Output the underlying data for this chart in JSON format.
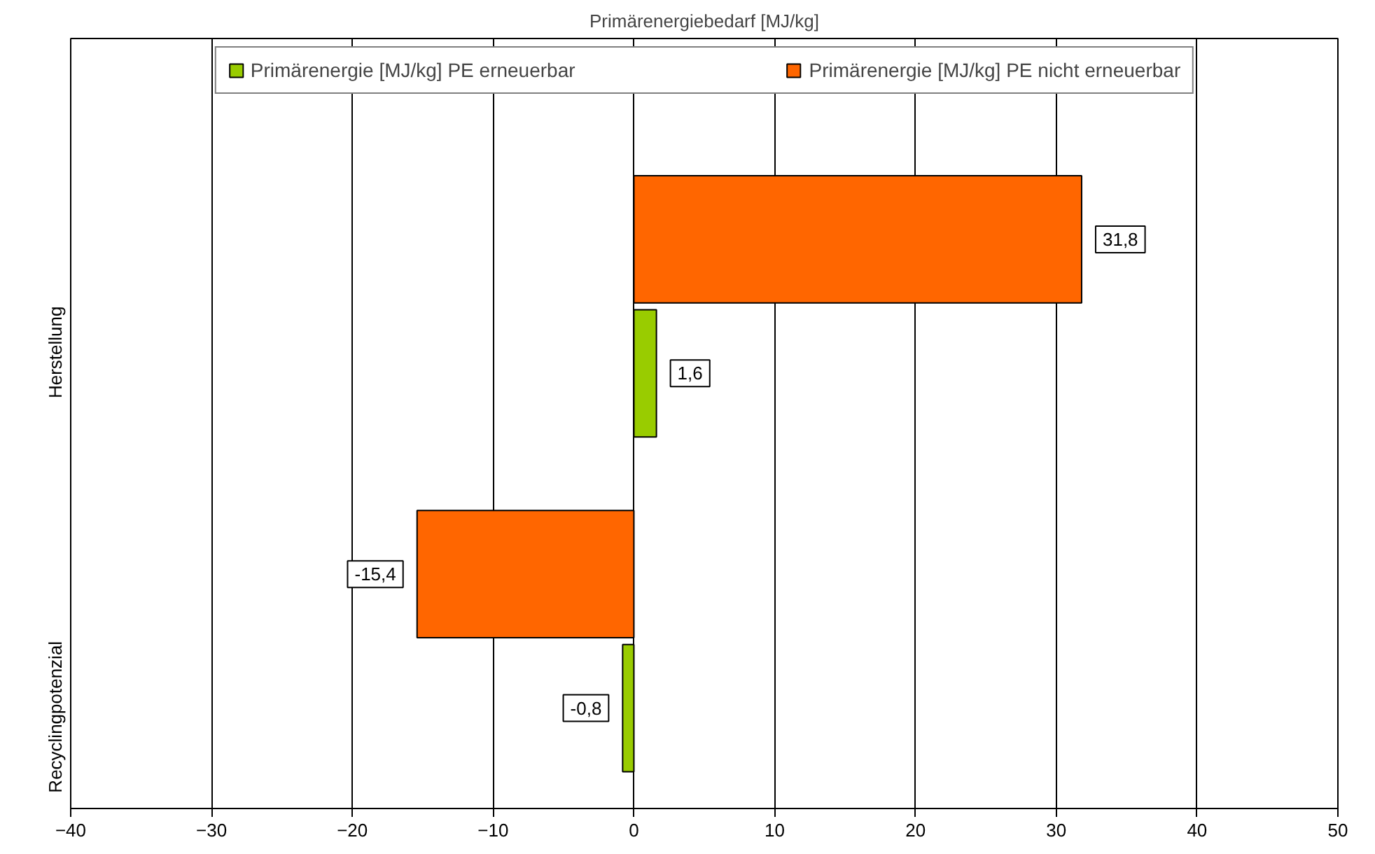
{
  "chart_data": {
    "type": "bar",
    "orientation": "horizontal",
    "title": "Primärenergiebedarf [MJ/kg]",
    "categories": [
      "Herstellung",
      "Recyclingpotenzial"
    ],
    "series": [
      {
        "name": "Primärenergie [MJ/kg] PE erneuerbar",
        "color": "#99cc00",
        "values": [
          1.6,
          -0.8
        ],
        "value_labels": [
          "1,6",
          "-0,8"
        ]
      },
      {
        "name": "Primärenergie [MJ/kg] PE nicht erneuerbar",
        "color": "#ff6600",
        "values": [
          31.8,
          -15.4
        ],
        "value_labels": [
          "31,8",
          "-15,4"
        ]
      }
    ],
    "xlim": [
      -40,
      50
    ],
    "xticks": [
      -40,
      -30,
      -20,
      -10,
      0,
      10,
      20,
      30,
      40,
      50
    ],
    "grid": "x",
    "legend": "top"
  }
}
